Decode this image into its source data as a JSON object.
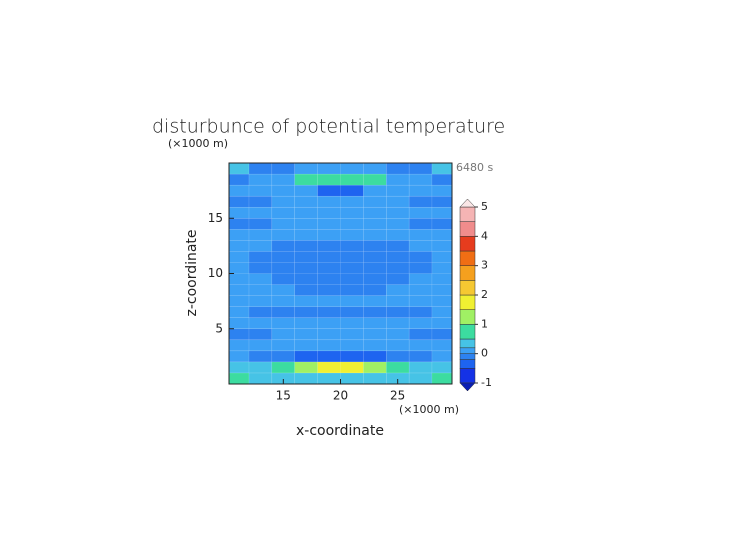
{
  "chart_data": {
    "type": "contour",
    "title": "disturbunce of potential temperature",
    "time_label": "6480 s",
    "x_label": "x-coordinate",
    "y_label": "z-coordinate",
    "x_unit": "(×1000 m)",
    "y_unit": "(×1000 m)",
    "xlim": [
      10.25,
      29.75
    ],
    "ylim": [
      0,
      20
    ],
    "xticks": [
      15,
      20,
      25
    ],
    "yticks": [
      5,
      10,
      15
    ],
    "x": [
      11,
      13,
      15,
      17,
      19,
      21,
      23,
      25,
      27,
      29
    ],
    "y": [
      0.5,
      1.5,
      2.5,
      3.5,
      4.5,
      5.5,
      6.5,
      7.5,
      8.5,
      9.5,
      10.5,
      11.5,
      12.5,
      13.5,
      14.5,
      15.5,
      16.5,
      17.5,
      18.5,
      19.5
    ],
    "z": [
      [
        0.6,
        0.3,
        0.3,
        0.3,
        0.3,
        0.3,
        0.3,
        0.3,
        0.3,
        0.6
      ],
      [
        0.3,
        0.3,
        0.6,
        1.1,
        1.6,
        1.6,
        1.1,
        0.6,
        0.3,
        0.3
      ],
      [
        0.1,
        -0.1,
        -0.1,
        -0.3,
        -0.3,
        -0.3,
        -0.3,
        -0.1,
        -0.1,
        0.1
      ],
      [
        0.1,
        0.1,
        0.1,
        0.1,
        0.1,
        0.1,
        0.1,
        0.1,
        0.1,
        0.1
      ],
      [
        -0.1,
        -0.1,
        0.1,
        0.1,
        0.1,
        0.1,
        0.1,
        0.1,
        -0.1,
        -0.1
      ],
      [
        0.1,
        0.1,
        0.1,
        0.1,
        0.1,
        0.1,
        0.1,
        0.1,
        0.1,
        0.1
      ],
      [
        0.1,
        -0.1,
        -0.1,
        -0.1,
        -0.1,
        -0.1,
        -0.1,
        -0.1,
        -0.1,
        0.1
      ],
      [
        0.1,
        0.1,
        0.1,
        0.1,
        0.1,
        0.1,
        0.1,
        0.1,
        0.1,
        0.1
      ],
      [
        0.1,
        0.1,
        0.1,
        -0.1,
        -0.1,
        -0.1,
        -0.1,
        0.1,
        0.1,
        0.1
      ],
      [
        0.1,
        0.1,
        -0.1,
        -0.1,
        -0.1,
        -0.1,
        -0.1,
        -0.1,
        0.1,
        0.1
      ],
      [
        0.1,
        -0.1,
        -0.1,
        -0.1,
        -0.1,
        -0.1,
        -0.1,
        -0.1,
        -0.1,
        0.1
      ],
      [
        0.1,
        -0.1,
        -0.1,
        -0.1,
        -0.1,
        -0.1,
        -0.1,
        -0.1,
        -0.1,
        0.1
      ],
      [
        0.1,
        0.1,
        -0.1,
        -0.1,
        -0.1,
        -0.1,
        -0.1,
        -0.1,
        0.1,
        0.1
      ],
      [
        0.1,
        0.1,
        0.1,
        0.1,
        0.1,
        0.1,
        0.1,
        0.1,
        0.1,
        0.1
      ],
      [
        -0.1,
        -0.1,
        0.1,
        0.1,
        0.1,
        0.1,
        0.1,
        0.1,
        -0.1,
        -0.1
      ],
      [
        0.1,
        0.1,
        0.1,
        0.1,
        0.1,
        0.1,
        0.1,
        0.1,
        0.1,
        0.1
      ],
      [
        -0.1,
        -0.1,
        0.1,
        0.1,
        0.1,
        0.1,
        0.1,
        0.1,
        -0.1,
        -0.1
      ],
      [
        0.1,
        0.1,
        0.1,
        0.1,
        -0.3,
        -0.3,
        0.1,
        0.1,
        0.1,
        0.1
      ],
      [
        -0.1,
        0.1,
        0.1,
        0.6,
        0.6,
        0.6,
        0.6,
        0.1,
        0.1,
        -0.1
      ],
      [
        0.3,
        -0.1,
        -0.1,
        0.1,
        0.1,
        0.1,
        0.1,
        -0.1,
        -0.1,
        0.3
      ]
    ],
    "levels": [
      -1,
      -0.5,
      -0.2,
      0,
      0.2,
      0.5,
      1,
      1.5,
      2,
      2.5,
      3,
      3.5,
      4,
      4.5,
      5
    ],
    "colors": [
      "#1432e6",
      "#1e64f0",
      "#2d82f0",
      "#3ca0f5",
      "#46c3e6",
      "#3cdca0",
      "#a0f064",
      "#f0f032",
      "#f5c832",
      "#f5a01e",
      "#f06e14",
      "#e63c1e",
      "#f08c8c",
      "#f5b4b4"
    ],
    "extend_colors": [
      "#0a1eb4",
      "#fae6e6"
    ],
    "colorbar_ticks": [
      -1,
      0,
      1,
      2,
      3,
      4,
      5
    ]
  }
}
